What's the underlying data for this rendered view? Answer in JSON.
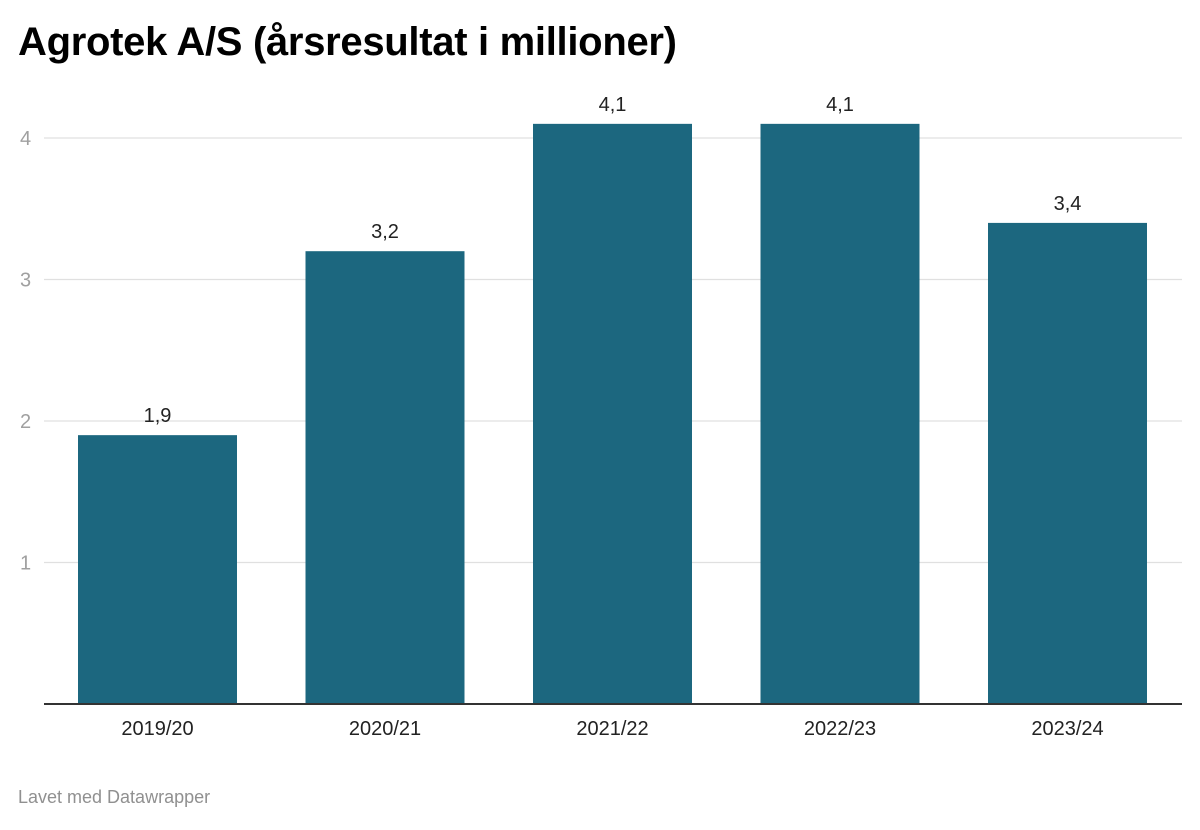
{
  "title": "Agrotek A/S (årsresultat i millioner)",
  "footer": "Lavet med Datawrapper",
  "colors": {
    "bar": "#1c677f",
    "grid": "#e0e0e0",
    "axis": "#333333",
    "tick_label": "#a0a0a0",
    "category_label": "#222222",
    "value_label": "#222222"
  },
  "chart_data": {
    "type": "bar",
    "title": "Agrotek A/S (årsresultat i millioner)",
    "categories": [
      "2019/20",
      "2020/21",
      "2021/22",
      "2022/23",
      "2023/24"
    ],
    "values": [
      1.9,
      3.2,
      4.1,
      4.1,
      3.4
    ],
    "value_labels": [
      "1,9",
      "3,2",
      "4,1",
      "4,1",
      "3,4"
    ],
    "y_ticks": [
      1,
      2,
      3,
      4
    ],
    "ylim": [
      0,
      4.1
    ],
    "xlabel": "",
    "ylabel": "",
    "grid": true,
    "legend": "none"
  }
}
